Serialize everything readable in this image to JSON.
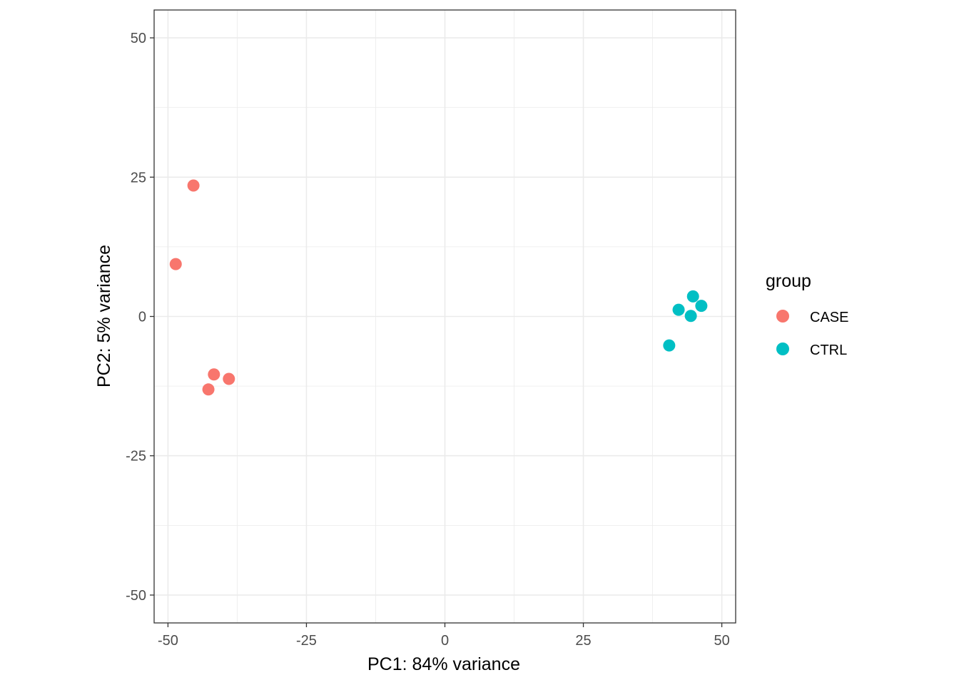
{
  "chart_data": {
    "type": "scatter",
    "title": "",
    "xlabel": "PC1: 84% variance",
    "ylabel": "PC2: 5% variance",
    "xlim": [
      -52.5,
      52.5
    ],
    "ylim": [
      -55,
      55
    ],
    "xticks": [
      -50,
      -25,
      0,
      25,
      50
    ],
    "xtick_labels": [
      "-50",
      "-25",
      "0",
      "25",
      "50"
    ],
    "yticks": [
      -50,
      -25,
      0,
      25,
      50
    ],
    "ytick_labels": [
      "-50",
      "-25",
      "0",
      "25",
      "50"
    ],
    "grid": true,
    "legend": {
      "title": "group",
      "placement": "right",
      "entries": [
        {
          "name": "CASE",
          "color": "#F8766D"
        },
        {
          "name": "CTRL",
          "color": "#00BFC4"
        }
      ]
    },
    "series": [
      {
        "name": "CASE",
        "color": "#F8766D",
        "points": [
          {
            "x": -45.4,
            "y": 23.5
          },
          {
            "x": -48.6,
            "y": 9.4
          },
          {
            "x": -41.7,
            "y": -10.4
          },
          {
            "x": -39.0,
            "y": -11.2
          },
          {
            "x": -42.7,
            "y": -13.1
          }
        ]
      },
      {
        "name": "CTRL",
        "color": "#00BFC4",
        "points": [
          {
            "x": 44.8,
            "y": 3.6
          },
          {
            "x": 42.2,
            "y": 1.2
          },
          {
            "x": 46.3,
            "y": 1.9
          },
          {
            "x": 44.4,
            "y": 0.1
          },
          {
            "x": 40.5,
            "y": -5.2
          }
        ]
      }
    ]
  }
}
